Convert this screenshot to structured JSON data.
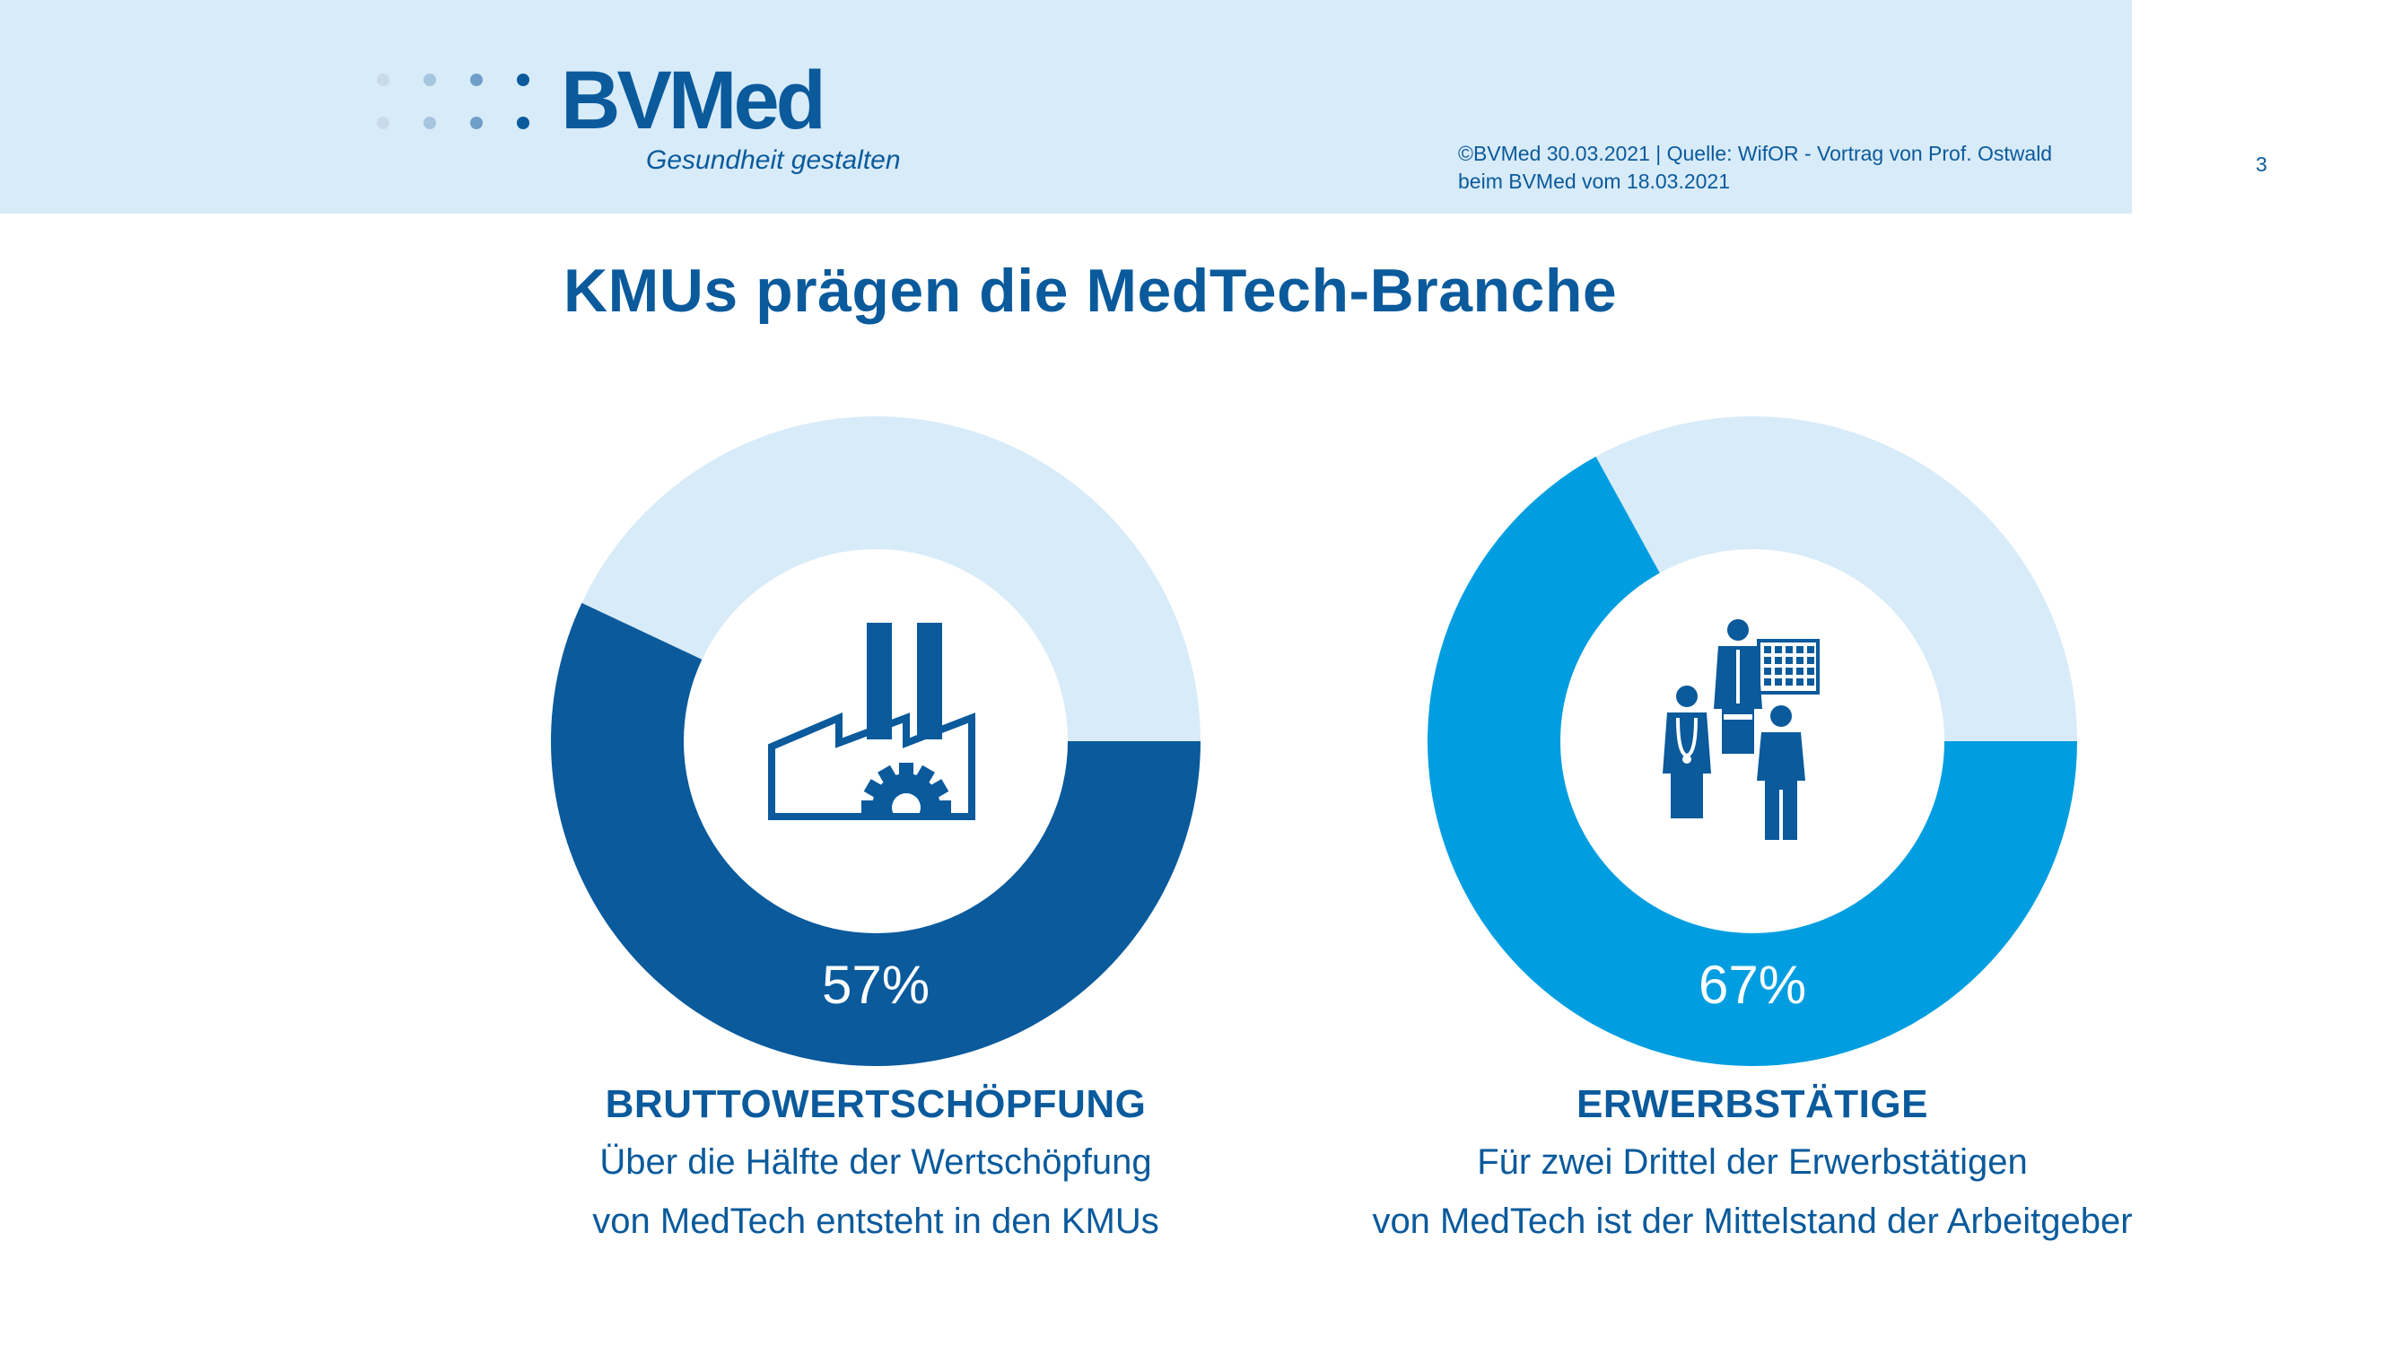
{
  "header": {
    "logo_word": "BVMed",
    "logo_tagline": "Gesundheit gestalten",
    "source_line1": "©BVMed 30.03.2021 | Quelle: WifOR - Vortrag von Prof. Ostwald",
    "source_line2": "beim BVMed vom 18.03.2021",
    "page_number": "3"
  },
  "title": "KMUs prägen die MedTech-Branche",
  "colors": {
    "brand_dark": "#0a5a9c",
    "ring_light": "#d8ebf8",
    "ring_bright": "#009ee0",
    "header_bg": "#d8ebf8"
  },
  "icons": [
    "factory-icon",
    "medical-staff-icon"
  ],
  "chart_data": [
    {
      "type": "pie",
      "variant": "donut",
      "value_percent": 57,
      "value_label": "57%",
      "slices": [
        {
          "value": 57,
          "color": "#0a5a9c"
        },
        {
          "value": 43,
          "color": "#d8ebf8"
        }
      ],
      "caption_head": "BRUTTOWERTSCHÖPFUNG",
      "caption_line1": "Über die Hälfte der Wertschöpfung",
      "caption_line2": "von MedTech entsteht in den KMUs"
    },
    {
      "type": "pie",
      "variant": "donut",
      "value_percent": 67,
      "value_label": "67%",
      "slices": [
        {
          "value": 67,
          "color": "#009ee0"
        },
        {
          "value": 33,
          "color": "#d8ebf8"
        }
      ],
      "caption_head": "ERWERBSTÄTIGE",
      "caption_line1": "Für zwei Drittel der Erwerbstätigen",
      "caption_line2": "von MedTech ist der Mittelstand der Arbeitgeber"
    }
  ]
}
